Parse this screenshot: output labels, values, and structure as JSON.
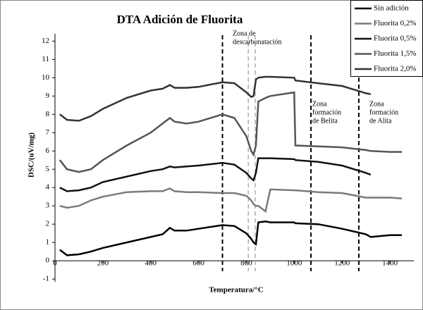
{
  "chart_data": {
    "type": "line",
    "title": "DTA Adición de Fluorita",
    "x_label": "Temperatura/°C",
    "y_label": "DSC/(uV/mg)",
    "x": [
      20,
      50,
      100,
      150,
      200,
      300,
      400,
      450,
      480,
      500,
      550,
      600,
      700,
      750,
      800,
      820,
      830,
      840,
      850,
      880,
      900,
      1000,
      1005,
      1100,
      1200,
      1300,
      1320,
      1400,
      1450
    ],
    "series": [
      {
        "name": "Sin adición",
        "color": "#000000",
        "values": [
          0.6,
          0.3,
          0.35,
          0.5,
          0.7,
          1.0,
          1.3,
          1.45,
          1.8,
          1.65,
          1.65,
          1.75,
          1.95,
          1.9,
          1.5,
          1.2,
          1.0,
          0.9,
          2.1,
          2.15,
          2.1,
          2.1,
          2.05,
          2.0,
          1.75,
          1.45,
          1.3,
          1.4,
          1.4
        ]
      },
      {
        "name": "Fluorita 0,2%",
        "color": "#7a7a7a",
        "values": [
          3.0,
          2.9,
          3.0,
          3.3,
          3.5,
          3.75,
          3.8,
          3.8,
          3.95,
          3.8,
          3.75,
          3.75,
          3.7,
          3.7,
          3.55,
          3.3,
          3.1,
          3.0,
          3.0,
          2.7,
          3.9,
          3.85,
          3.85,
          3.75,
          3.7,
          3.45,
          3.45,
          3.45,
          3.4
        ]
      },
      {
        "name": "Fluorita 0,5%",
        "color": "#111111",
        "values": [
          4.0,
          3.8,
          3.85,
          4.0,
          4.3,
          4.6,
          4.9,
          5.0,
          5.15,
          5.1,
          5.15,
          5.2,
          5.35,
          5.25,
          4.8,
          4.5,
          4.4,
          4.8,
          5.6,
          5.6,
          5.6,
          5.55,
          5.5,
          5.4,
          5.2,
          4.8,
          4.7,
          null,
          null
        ]
      },
      {
        "name": "Fluorita 1,5%",
        "color": "#555555",
        "values": [
          5.5,
          5.0,
          4.85,
          5.0,
          5.5,
          6.3,
          7.0,
          7.5,
          7.8,
          7.6,
          7.5,
          7.6,
          8.0,
          7.8,
          6.8,
          6.0,
          5.8,
          6.3,
          8.7,
          8.9,
          9.0,
          9.2,
          6.3,
          6.25,
          6.2,
          6.05,
          6.0,
          5.95,
          5.95
        ]
      },
      {
        "name": "Fluorita 2,0%",
        "color": "#333333",
        "values": [
          8.0,
          7.7,
          7.65,
          7.9,
          8.3,
          8.9,
          9.3,
          9.4,
          9.6,
          9.45,
          9.45,
          9.5,
          9.75,
          9.7,
          9.2,
          8.95,
          9.0,
          9.9,
          10.0,
          10.05,
          10.05,
          10.0,
          9.85,
          9.7,
          9.55,
          9.15,
          9.1,
          null,
          null
        ]
      }
    ],
    "vlines": [
      700,
      808,
      837,
      1070,
      1270
    ],
    "vline_colors": [
      "#000000",
      "#999999",
      "#999999",
      "#000000",
      "#000000"
    ],
    "annotations": [
      [
        "Zona de",
        "descarbonatación"
      ],
      [
        "Zona",
        "formación",
        "de Belita"
      ],
      [
        "Zona",
        "formación",
        "de Alita"
      ]
    ],
    "xlim": [
      0,
      1500
    ],
    "ylim": [
      -1.15,
      12.4
    ],
    "xticks": [
      0,
      200,
      400,
      600,
      800,
      1000,
      1200,
      1400
    ],
    "yticks": [
      -1,
      0,
      1,
      2,
      3,
      4,
      5,
      6,
      7,
      8,
      9,
      10,
      11,
      12
    ],
    "legend": "top-right"
  }
}
